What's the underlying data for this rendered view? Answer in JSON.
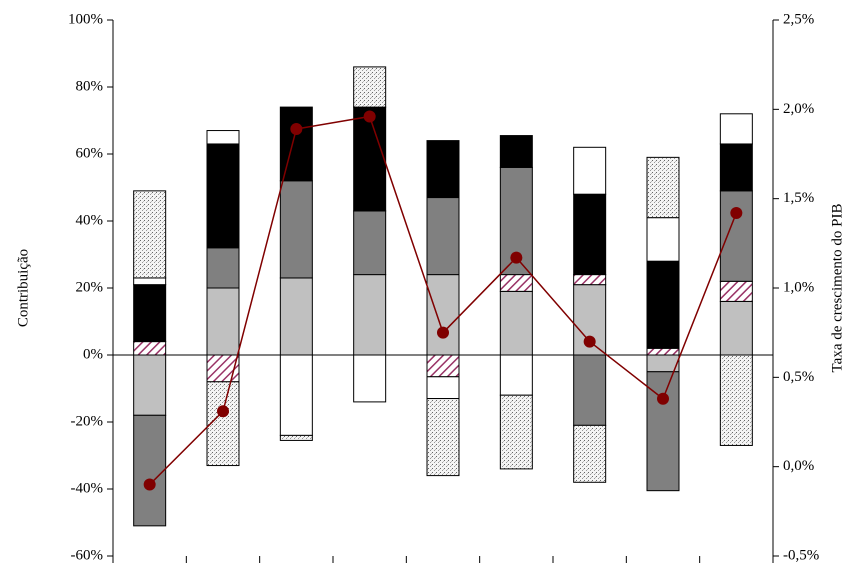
{
  "chart_data": {
    "type": "bar-line",
    "y_label": "Contribuição",
    "y2_label": "Taxa de crescimento do PIB",
    "categories": [
      null,
      null,
      null,
      null,
      null,
      null,
      null,
      null,
      null
    ],
    "ylim": [
      -60,
      100
    ],
    "yticks": [
      {
        "value": -60,
        "label": "-60%"
      },
      {
        "value": -40,
        "label": "-40%"
      },
      {
        "value": -20,
        "label": "-20%"
      },
      {
        "value": 0,
        "label": "0%"
      },
      {
        "value": 20,
        "label": "20%"
      },
      {
        "value": 40,
        "label": "40%"
      },
      {
        "value": 60,
        "label": "60%"
      },
      {
        "value": 80,
        "label": "80%"
      },
      {
        "value": 100,
        "label": "100%"
      }
    ],
    "y2lim": [
      -0.5,
      2.5
    ],
    "y2ticks": [
      {
        "value": -0.5,
        "label": "-0,5%"
      },
      {
        "value": 0,
        "label": "0,0%"
      },
      {
        "value": 0.5,
        "label": "0,5%"
      },
      {
        "value": 1,
        "label": "1,0%"
      },
      {
        "value": 1.5,
        "label": "1,5%"
      },
      {
        "value": 2,
        "label": "2,0%"
      },
      {
        "value": 2.5,
        "label": "2,5%"
      }
    ],
    "series": [
      {
        "color": "#c0c0c0",
        "pattern": "solid",
        "values": [
          -18,
          20,
          23,
          24,
          24,
          19,
          21,
          -5,
          16
        ]
      },
      {
        "color": "#993366",
        "pattern": "hatch",
        "values": [
          4,
          -8,
          0,
          0,
          -6.5,
          5,
          3,
          2,
          6
        ]
      },
      {
        "color": "#808080",
        "pattern": "solid",
        "values": [
          -33,
          12,
          29,
          19,
          23,
          32,
          -21,
          -35.5,
          27
        ]
      },
      {
        "color": "#000000",
        "pattern": "solid",
        "values": [
          17,
          31,
          22,
          31,
          17,
          9.5,
          24,
          26,
          14
        ]
      },
      {
        "color": "#ffffff",
        "pattern": "solid",
        "values": [
          2,
          4,
          -24,
          -14,
          -6.5,
          -12,
          14,
          13,
          9
        ]
      },
      {
        "color": "#b0b0b0",
        "pattern": "dots",
        "values": [
          26,
          -25,
          -1.5,
          12,
          -23,
          -22,
          -17,
          18,
          -27
        ]
      },
      {
        "type": "line",
        "axis": "y2",
        "color": "#800000",
        "values": [
          -0.1,
          0.31,
          1.89,
          1.96,
          0.75,
          1.17,
          0.7,
          0.38,
          1.42
        ]
      }
    ]
  }
}
